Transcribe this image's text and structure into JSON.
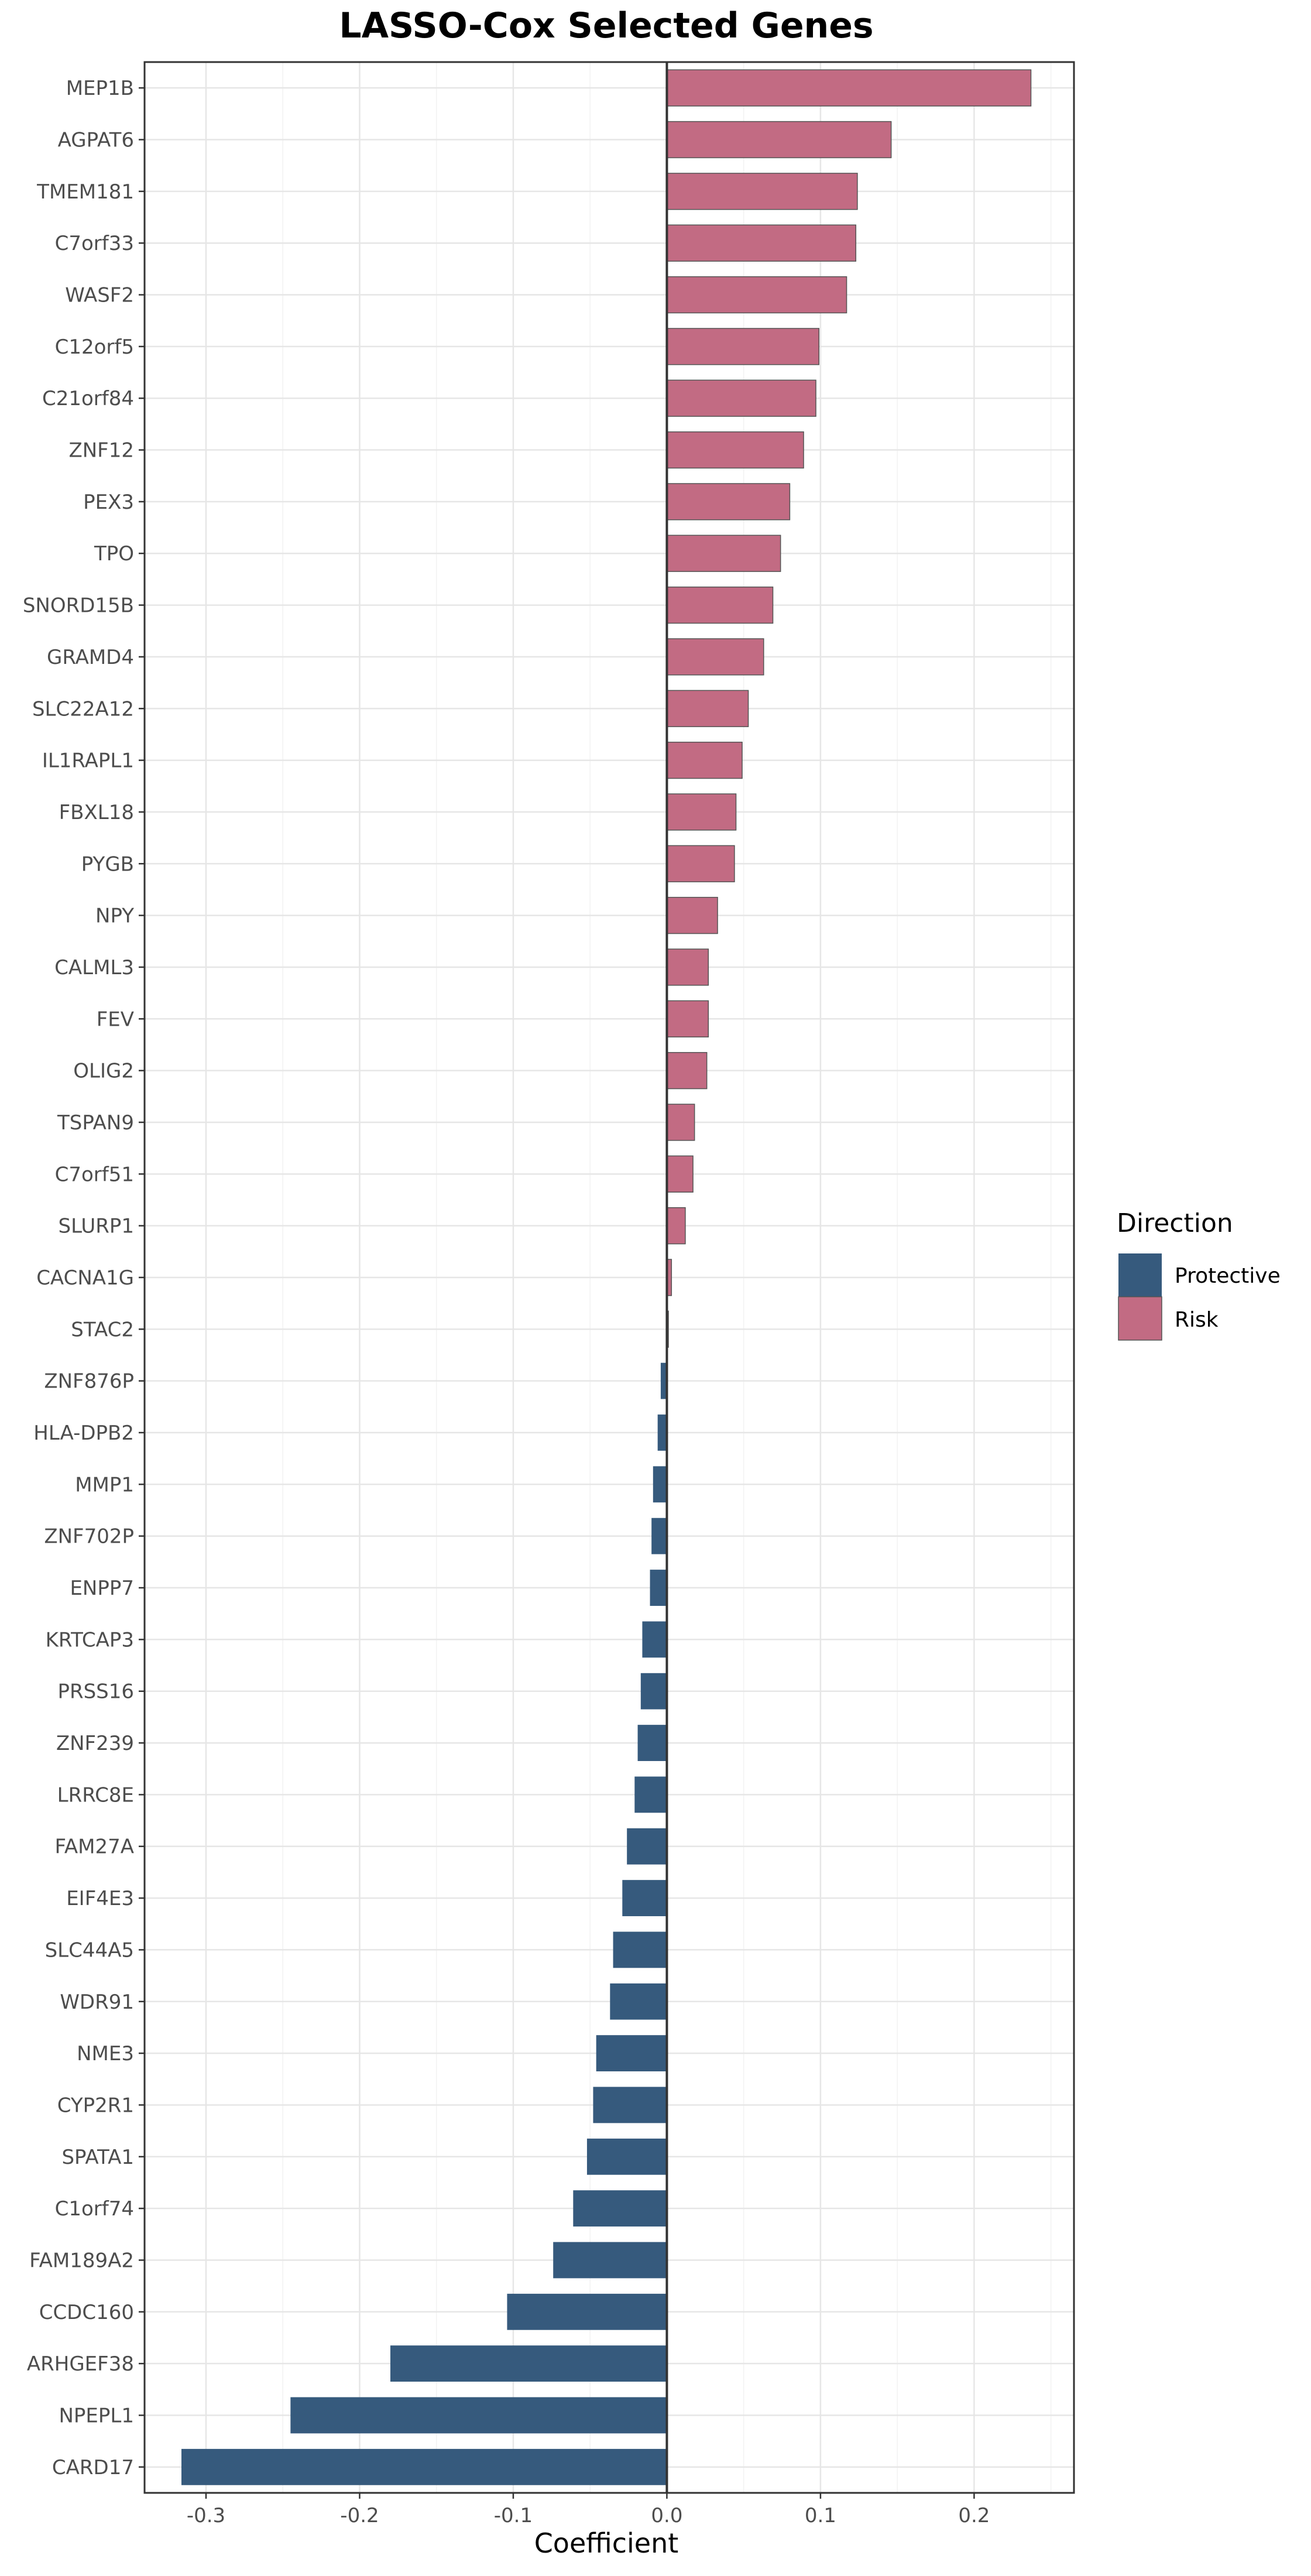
{
  "chart_data": {
    "type": "bar",
    "orientation": "horizontal",
    "title": "LASSO-Cox Selected Genes",
    "xlabel": "Coefficient",
    "ylabel": "",
    "xlim": [
      -0.34,
      0.265
    ],
    "xticks": [
      -0.3,
      -0.2,
      -0.1,
      0.0,
      0.1,
      0.2
    ],
    "xtick_labels": [
      "-0.3",
      "-0.2",
      "-0.1",
      "0.0",
      "0.1",
      "0.2"
    ],
    "grid": true,
    "legend": {
      "title": "Direction",
      "placement": "right",
      "entries": [
        {
          "label": "Protective",
          "color": "#365a7d"
        },
        {
          "label": "Risk",
          "color": "#c26b83"
        }
      ]
    },
    "colors": {
      "Protective": "#365a7d",
      "Risk": "#c26b83"
    },
    "categories": [
      "MEP1B",
      "AGPAT6",
      "TMEM181",
      "C7orf33",
      "WASF2",
      "C12orf5",
      "C21orf84",
      "ZNF12",
      "PEX3",
      "TPO",
      "SNORD15B",
      "GRAMD4",
      "SLC22A12",
      "IL1RAPL1",
      "FBXL18",
      "PYGB",
      "NPY",
      "CALML3",
      "FEV",
      "OLIG2",
      "TSPAN9",
      "C7orf51",
      "SLURP1",
      "CACNA1G",
      "STAC2",
      "ZNF876P",
      "HLA-DPB2",
      "MMP1",
      "ZNF702P",
      "ENPP7",
      "KRTCAP3",
      "PRSS16",
      "ZNF239",
      "LRRC8E",
      "FAM27A",
      "EIF4E3",
      "SLC44A5",
      "WDR91",
      "NME3",
      "CYP2R1",
      "SPATA1",
      "C1orf74",
      "FAM189A2",
      "CCDC160",
      "ARHGEF38",
      "NPEPL1",
      "CARD17"
    ],
    "values": [
      0.237,
      0.146,
      0.124,
      0.123,
      0.117,
      0.099,
      0.097,
      0.089,
      0.08,
      0.074,
      0.069,
      0.063,
      0.053,
      0.049,
      0.045,
      0.044,
      0.033,
      0.027,
      0.027,
      0.026,
      0.018,
      0.017,
      0.012,
      0.003,
      0.001,
      -0.004,
      -0.006,
      -0.009,
      -0.01,
      -0.011,
      -0.016,
      -0.017,
      -0.019,
      -0.021,
      -0.026,
      -0.029,
      -0.035,
      -0.037,
      -0.046,
      -0.048,
      -0.052,
      -0.061,
      -0.074,
      -0.104,
      -0.18,
      -0.245,
      -0.316
    ],
    "direction": [
      "Risk",
      "Risk",
      "Risk",
      "Risk",
      "Risk",
      "Risk",
      "Risk",
      "Risk",
      "Risk",
      "Risk",
      "Risk",
      "Risk",
      "Risk",
      "Risk",
      "Risk",
      "Risk",
      "Risk",
      "Risk",
      "Risk",
      "Risk",
      "Risk",
      "Risk",
      "Risk",
      "Risk",
      "Risk",
      "Protective",
      "Protective",
      "Protective",
      "Protective",
      "Protective",
      "Protective",
      "Protective",
      "Protective",
      "Protective",
      "Protective",
      "Protective",
      "Protective",
      "Protective",
      "Protective",
      "Protective",
      "Protective",
      "Protective",
      "Protective",
      "Protective",
      "Protective",
      "Protective",
      "Protective"
    ]
  }
}
